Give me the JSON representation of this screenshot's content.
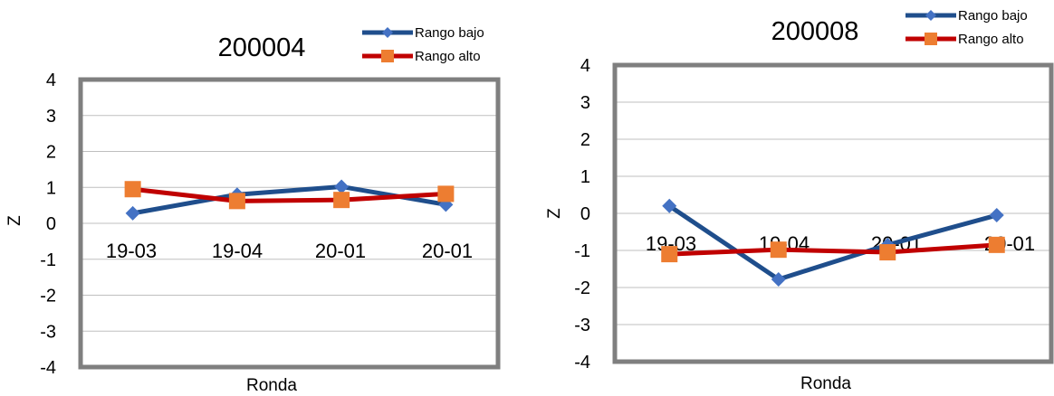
{
  "chart_data": [
    {
      "type": "line",
      "title": "200004",
      "xlabel": "Ronda",
      "ylabel": "Z",
      "ylim": [
        -4,
        4
      ],
      "yticks": [
        -4,
        -3,
        -2,
        -1,
        0,
        1,
        2,
        3,
        4
      ],
      "categories": [
        "19-03",
        "19-04",
        "20-01",
        "20-01"
      ],
      "grid": true,
      "legend": "top-right",
      "series": [
        {
          "name": "Rango bajo",
          "color": "#1f4e8c",
          "marker_color": "#4472c4",
          "marker": "diamond",
          "values": [
            0.28,
            0.8,
            1.02,
            0.52
          ]
        },
        {
          "name": "Rango alto",
          "color": "#c00000",
          "marker_color": "#ed7d31",
          "marker": "square",
          "values": [
            0.95,
            0.62,
            0.65,
            0.82
          ]
        }
      ]
    },
    {
      "type": "line",
      "title": "200008",
      "xlabel": "Ronda",
      "ylabel": "Z",
      "ylim": [
        -4,
        4
      ],
      "yticks": [
        -4,
        -3,
        -2,
        -1,
        0,
        1,
        2,
        3,
        4
      ],
      "categories": [
        "19-03",
        "19-04",
        "20-01",
        "20-01"
      ],
      "grid": true,
      "legend": "top-right",
      "series": [
        {
          "name": "Rango bajo",
          "color": "#1f4e8c",
          "marker_color": "#4472c4",
          "marker": "diamond",
          "values": [
            0.2,
            -1.78,
            -0.85,
            -0.05
          ]
        },
        {
          "name": "Rango alto",
          "color": "#c00000",
          "marker_color": "#ed7d31",
          "marker": "square",
          "values": [
            -1.1,
            -0.98,
            -1.05,
            -0.85
          ]
        }
      ]
    }
  ]
}
